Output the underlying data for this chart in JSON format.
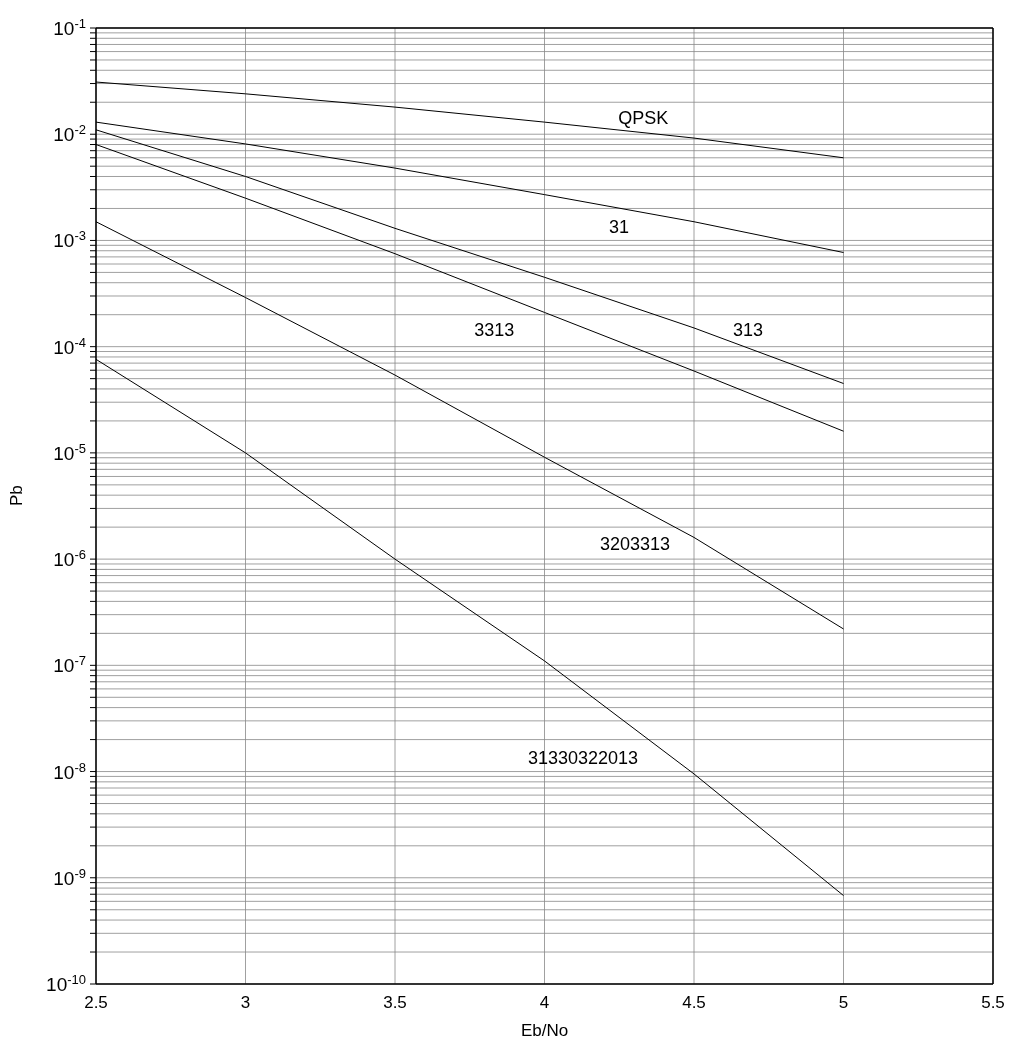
{
  "chart_data": {
    "type": "line",
    "xlabel": "Eb/No",
    "ylabel": "Pb",
    "log": "y",
    "grid": true,
    "marker": "none",
    "line_style": "solid",
    "x": [
      2.5,
      3,
      3.5,
      4,
      4.5,
      5
    ],
    "xlim": [
      2.5,
      5.5
    ],
    "xticks": [
      2.5,
      3,
      3.5,
      4,
      4.5,
      5,
      5.5
    ],
    "ylim": [
      1e-10,
      0.1
    ],
    "yticks": [
      {
        "value": 1e-10,
        "label": "10$^{-10}$"
      },
      {
        "value": 2e-10,
        "label": null
      },
      {
        "value": 3e-10,
        "label": null
      },
      {
        "value": 4e-10,
        "label": null
      },
      {
        "value": 5e-10,
        "label": null
      },
      {
        "value": 6e-10,
        "label": null
      },
      {
        "value": 7e-10,
        "label": null
      },
      {
        "value": 8e-10,
        "label": null
      },
      {
        "value": 9e-10,
        "label": null
      },
      {
        "value": 1e-09,
        "label": "10$^{-9}$"
      },
      {
        "value": 2e-09,
        "label": null
      },
      {
        "value": 3e-09,
        "label": null
      },
      {
        "value": 4e-09,
        "label": null
      },
      {
        "value": 5e-09,
        "label": null
      },
      {
        "value": 6e-09,
        "label": null
      },
      {
        "value": 7e-09,
        "label": null
      },
      {
        "value": 8e-09,
        "label": null
      },
      {
        "value": 9e-09,
        "label": null
      },
      {
        "value": 1e-08,
        "label": "10$^{-8}$"
      },
      {
        "value": 2e-08,
        "label": null
      },
      {
        "value": 3e-08,
        "label": null
      },
      {
        "value": 4e-08,
        "label": null
      },
      {
        "value": 5e-08,
        "label": null
      },
      {
        "value": 6e-08,
        "label": null
      },
      {
        "value": 7e-08,
        "label": null
      },
      {
        "value": 8e-08,
        "label": null
      },
      {
        "value": 9e-08,
        "label": null
      },
      {
        "value": 1e-07,
        "label": "10$^{-7}$"
      },
      {
        "value": 2e-07,
        "label": null
      },
      {
        "value": 3e-07,
        "label": null
      },
      {
        "value": 4e-07,
        "label": null
      },
      {
        "value": 5e-07,
        "label": null
      },
      {
        "value": 6e-07,
        "label": null
      },
      {
        "value": 7e-07,
        "label": null
      },
      {
        "value": 8e-07,
        "label": null
      },
      {
        "value": 9e-07,
        "label": null
      },
      {
        "value": 1e-06,
        "label": "10$^{-6}$"
      },
      {
        "value": 2e-06,
        "label": null
      },
      {
        "value": 3e-06,
        "label": null
      },
      {
        "value": 4e-06,
        "label": null
      },
      {
        "value": 5e-06,
        "label": null
      },
      {
        "value": 6e-06,
        "label": null
      },
      {
        "value": 7e-06,
        "label": null
      },
      {
        "value": 8e-06,
        "label": null
      },
      {
        "value": 9e-06,
        "label": null
      },
      {
        "value": 1e-05,
        "label": "10$^{-5}$"
      },
      {
        "value": 2e-05,
        "label": null
      },
      {
        "value": 3e-05,
        "label": null
      },
      {
        "value": 4e-05,
        "label": null
      },
      {
        "value": 5e-05,
        "label": null
      },
      {
        "value": 6e-05,
        "label": null
      },
      {
        "value": 7e-05,
        "label": null
      },
      {
        "value": 8e-05,
        "label": null
      },
      {
        "value": 9e-05,
        "label": null
      },
      {
        "value": 0.0001,
        "label": "10$^{-4}$"
      },
      {
        "value": 0.0002,
        "label": null
      },
      {
        "value": 0.0003,
        "label": null
      },
      {
        "value": 0.0004,
        "label": null
      },
      {
        "value": 0.0005,
        "label": null
      },
      {
        "value": 0.0006,
        "label": null
      },
      {
        "value": 0.0007,
        "label": null
      },
      {
        "value": 0.0008,
        "label": null
      },
      {
        "value": 0.0009,
        "label": null
      },
      {
        "value": 0.001,
        "label": "10$^{-3}$"
      },
      {
        "value": 0.002,
        "label": null
      },
      {
        "value": 0.003,
        "label": null
      },
      {
        "value": 0.004,
        "label": null
      },
      {
        "value": 0.005,
        "label": null
      },
      {
        "value": 0.006,
        "label": null
      },
      {
        "value": 0.007,
        "label": null
      },
      {
        "value": 0.008,
        "label": null
      },
      {
        "value": 0.009,
        "label": null
      },
      {
        "value": 0.01,
        "label": "10$^{-2}$"
      },
      {
        "value": 0.02,
        "label": null
      },
      {
        "value": 0.03,
        "label": null
      },
      {
        "value": 0.04,
        "label": null
      },
      {
        "value": 0.05,
        "label": null
      },
      {
        "value": 0.06,
        "label": null
      },
      {
        "value": 0.07,
        "label": null
      },
      {
        "value": 0.08,
        "label": null
      },
      {
        "value": 0.09,
        "label": null
      },
      {
        "value": 0.1,
        "label": "10$^{-1}$"
      }
    ],
    "series": [
      {
        "name": "QPSK",
        "color": "#000000",
        "values": [
          0.031,
          0.024,
          0.018,
          0.013,
          0.0092,
          0.006
        ]
      },
      {
        "name": "31",
        "color": "#000000",
        "values": [
          0.013,
          0.0081,
          0.0048,
          0.0027,
          0.0015,
          0.00077
        ]
      },
      {
        "name": "313",
        "color": "#000000",
        "values": [
          0.011,
          0.004,
          0.0013,
          0.00045,
          0.00015,
          4.5e-05
        ]
      },
      {
        "name": "3313",
        "color": "#000000",
        "values": [
          0.008,
          0.0025,
          0.00075,
          0.00021,
          5.9e-05,
          1.6e-05
        ]
      },
      {
        "name": "3203313",
        "color": "#000000",
        "values": [
          0.0015,
          0.00029,
          5.4e-05,
          9.1e-06,
          1.6e-06,
          2.2e-07
        ]
      },
      {
        "name": "31330322013",
        "color": "#000000",
        "values": [
          7.6e-05,
          1e-05,
          1e-06,
          1.1e-07,
          9.5e-09,
          6.8e-10
        ]
      }
    ]
  }
}
